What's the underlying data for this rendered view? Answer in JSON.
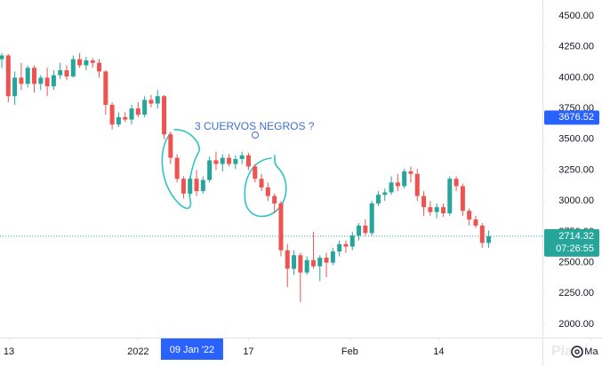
{
  "chart_data": {
    "type": "candlestick",
    "up_color": "#26a69a",
    "down_color": "#ef5350",
    "series": [
      {
        "open": [
          4150,
          4180,
          3850,
          4000,
          3950,
          4080,
          3950,
          4000,
          3930,
          4020,
          4060,
          4010,
          4150,
          4100,
          4140,
          4120,
          4050,
          3780,
          3620,
          3680,
          3660,
          3750,
          3700,
          3820,
          3790,
          3850,
          3540,
          3350,
          3180,
          3060,
          3180,
          3080,
          3170,
          3330,
          3300,
          3350,
          3300,
          3340,
          3370,
          3280,
          3180,
          3110,
          3040,
          2980,
          2600,
          2450,
          2560,
          2420,
          2520,
          2470,
          2540,
          2500,
          2590,
          2650,
          2630,
          2720,
          2800,
          2740,
          2980,
          3050,
          3070,
          3150,
          3120,
          3240,
          3220,
          3040,
          2950,
          2910,
          2950,
          2900,
          3180,
          3120,
          2920,
          2850,
          2800,
          2660
        ],
        "high": [
          4200,
          4190,
          4050,
          4120,
          4100,
          4100,
          4020,
          4080,
          4060,
          4120,
          4100,
          4180,
          4200,
          4170,
          4160,
          4150,
          4060,
          3800,
          3720,
          3720,
          3780,
          3800,
          3850,
          3860,
          3900,
          3860,
          3560,
          3380,
          3200,
          3200,
          3250,
          3200,
          3360,
          3400,
          3380,
          3380,
          3370,
          3400,
          3390,
          3300,
          3220,
          3150,
          3060,
          3000,
          2650,
          2600,
          2580,
          2550,
          2750,
          2560,
          2580,
          2620,
          2680,
          2680,
          2750,
          2820,
          2850,
          3000,
          3080,
          3100,
          3200,
          3220,
          3260,
          3280,
          3260,
          3080,
          3000,
          2980,
          2980,
          3200,
          3200,
          3140,
          2940,
          2880,
          2820,
          2760
        ],
        "low": [
          4080,
          3800,
          3780,
          3900,
          3920,
          3880,
          3900,
          3850,
          3900,
          3990,
          3980,
          4000,
          4080,
          4060,
          4080,
          4000,
          3700,
          3580,
          3600,
          3640,
          3620,
          3680,
          3680,
          3760,
          3750,
          3500,
          3300,
          3150,
          3020,
          3040,
          3040,
          3060,
          3150,
          3250,
          3240,
          3280,
          3260,
          3300,
          3250,
          3150,
          3080,
          3000,
          2900,
          2550,
          2300,
          2400,
          2180,
          2400,
          2450,
          2350,
          2380,
          2480,
          2550,
          2580,
          2600,
          2680,
          2720,
          2720,
          2960,
          3000,
          3050,
          3080,
          3100,
          3150,
          3000,
          2880,
          2880,
          2860,
          2870,
          2880,
          3080,
          2880,
          2800,
          2780,
          2620,
          2620
        ],
        "close": [
          4180,
          3850,
          4000,
          3950,
          4080,
          3950,
          4000,
          3930,
          4020,
          4060,
          4010,
          4150,
          4100,
          4140,
          4120,
          4050,
          3780,
          3620,
          3680,
          3660,
          3750,
          3700,
          3820,
          3790,
          3850,
          3540,
          3350,
          3180,
          3060,
          3180,
          3080,
          3170,
          3330,
          3300,
          3350,
          3300,
          3340,
          3370,
          3280,
          3180,
          3110,
          3040,
          2980,
          2600,
          2450,
          2560,
          2420,
          2520,
          2470,
          2540,
          2500,
          2590,
          2650,
          2630,
          2720,
          2800,
          2740,
          2980,
          3050,
          3070,
          3150,
          3120,
          3240,
          3220,
          3040,
          2950,
          2910,
          2950,
          2900,
          3180,
          3120,
          2920,
          2850,
          2800,
          2660,
          2714.32
        ]
      }
    ],
    "xlim": [
      0,
      83
    ],
    "ylim": [
      1892,
      4630
    ],
    "yticks": [
      {
        "value": 2000,
        "label": "2000.00"
      },
      {
        "value": 2250,
        "label": "2250.00"
      },
      {
        "value": 2500,
        "label": "2500.00"
      },
      {
        "value": 2750,
        "label": "2750.00"
      },
      {
        "value": 3000,
        "label": "3000.00"
      },
      {
        "value": 3250,
        "label": "3250.00"
      },
      {
        "value": 3500,
        "label": "3500.00"
      },
      {
        "value": 3750,
        "label": "3750.00"
      },
      {
        "value": 4000,
        "label": "4000.00"
      },
      {
        "value": 4250,
        "label": "4250.00"
      },
      {
        "value": 4500,
        "label": "4500.00"
      }
    ],
    "xticks": [
      {
        "value": 1.1,
        "label": "13"
      },
      {
        "value": 21,
        "label": "2022"
      },
      {
        "value": 38,
        "label": "17"
      },
      {
        "value": 53.6,
        "label": "Feb"
      },
      {
        "value": 67.3,
        "label": "14"
      },
      {
        "value": 90.8,
        "label": "Ma"
      }
    ],
    "crosshair_x": {
      "value": 29.3,
      "label": "09 Jan '22"
    },
    "crosshair_y": {
      "value": 3676.52,
      "label": "3676.52"
    },
    "last_price": {
      "value": 2714.32,
      "label": "2714.32"
    },
    "countdown": "07:26:55",
    "annotation": "3 CUERVOS NEGROS ?",
    "watermark": "Platzi",
    "grid": false
  }
}
